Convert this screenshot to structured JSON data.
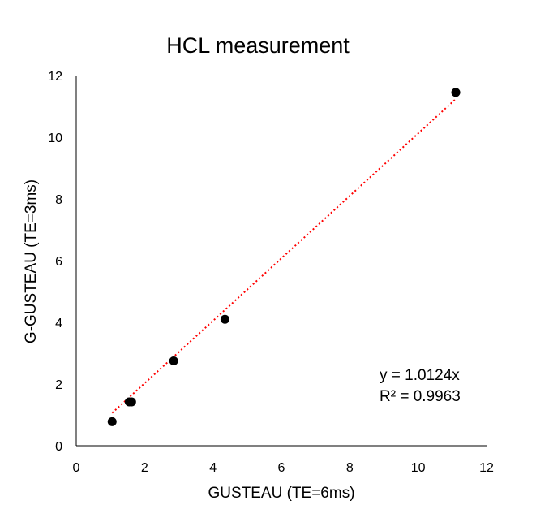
{
  "chart_data": {
    "type": "scatter",
    "title": "HCL measurement",
    "xlabel": "GUSTEAU (TE=6ms)",
    "ylabel": "G-GUSTEAU (TE=3ms)",
    "xlim": [
      0,
      12
    ],
    "ylim": [
      0,
      12
    ],
    "xticks": [
      0,
      2,
      4,
      6,
      8,
      10,
      12
    ],
    "yticks": [
      0,
      2,
      4,
      6,
      8,
      10,
      12
    ],
    "grid": false,
    "series": [
      {
        "points": [
          {
            "x": 1.05,
            "y": 0.78
          },
          {
            "x": 1.55,
            "y": 1.42
          },
          {
            "x": 1.62,
            "y": 1.42
          },
          {
            "x": 2.85,
            "y": 2.75
          },
          {
            "x": 4.35,
            "y": 4.1
          },
          {
            "x": 11.1,
            "y": 11.45
          }
        ],
        "color": "#000000"
      }
    ],
    "trendline": {
      "type": "linear-through-origin",
      "slope": 1.0124,
      "x_range": [
        1.05,
        11.1
      ],
      "color": "#ff0000",
      "style": "dotted",
      "equation": "y = 1.0124x",
      "r_squared": "R² = 0.9963"
    }
  }
}
